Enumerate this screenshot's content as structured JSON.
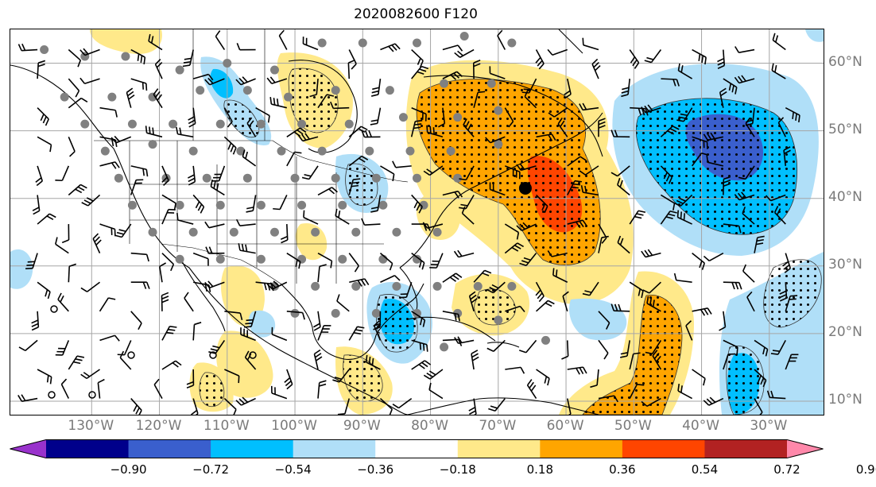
{
  "title": "2020082600 F120",
  "map": {
    "lat_labels": [
      {
        "text": "60°N",
        "lat": 60
      },
      {
        "text": "50°N",
        "lat": 50
      },
      {
        "text": "40°N",
        "lat": 40
      },
      {
        "text": "30°N",
        "lat": 30
      },
      {
        "text": "20°N",
        "lat": 20
      },
      {
        "text": "10°N",
        "lat": 10
      }
    ],
    "lon_labels": [
      {
        "text": "130°W",
        "lon": -130
      },
      {
        "text": "120°W",
        "lon": -120
      },
      {
        "text": "110°W",
        "lon": -110
      },
      {
        "text": "100°W",
        "lon": -100
      },
      {
        "text": "90°W",
        "lon": -90
      },
      {
        "text": "80°W",
        "lon": -80
      },
      {
        "text": "70°W",
        "lon": -70
      },
      {
        "text": "60°W",
        "lon": -60
      },
      {
        "text": "50°W",
        "lon": -50
      },
      {
        "text": "40°W",
        "lon": -40
      },
      {
        "text": "30°W",
        "lon": -30
      }
    ],
    "extent": {
      "lon_min": -142,
      "lon_max": -22,
      "lat_min": 8,
      "lat_max": 65
    },
    "grid": true,
    "marker": {
      "lon": -66,
      "lat": 41.5
    }
  },
  "colorbar": {
    "ticks": [
      "−0.90",
      "−0.72",
      "−0.54",
      "−0.36",
      "−0.18",
      "0.18",
      "0.36",
      "0.54",
      "0.72",
      "0.90"
    ],
    "colors": [
      "#9932cc",
      "#00008b",
      "#3a5fcd",
      "#00bfff",
      "#b0dff8",
      "#ffffff",
      "#ffe98a",
      "#ffa500",
      "#ff4500",
      "#b22222",
      "#ff88aa"
    ]
  },
  "colors": {
    "pos_weak": "#ffe98a",
    "pos_mid": "#ffa500",
    "pos_strong": "#ff4500",
    "neg_weak": "#b0dff8",
    "neg_mid": "#00bfff",
    "neg_strong": "#3a5fcd"
  }
}
